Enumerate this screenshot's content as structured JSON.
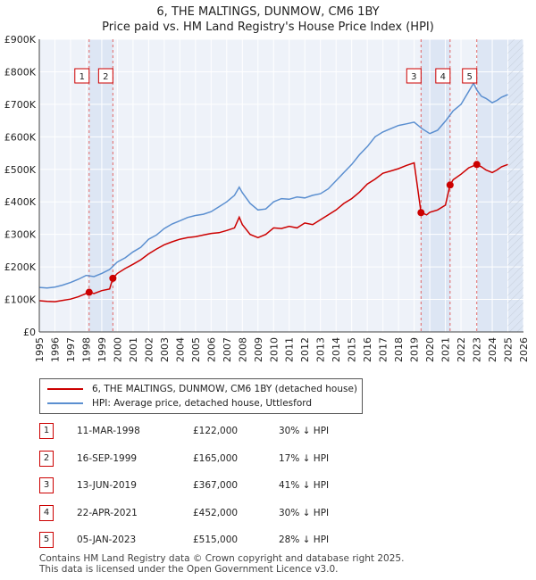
{
  "header": {
    "title": "6, THE MALTINGS, DUNMOW, CM6 1BY",
    "subtitle": "Price paid vs. HM Land Registry's House Price Index (HPI)"
  },
  "chart_data": {
    "type": "line",
    "title": "6, THE MALTINGS, DUNMOW, CM6 1BY",
    "subtitle": "Price paid vs. HM Land Registry's House Price Index (HPI)",
    "xlabel": "",
    "ylabel": "",
    "xlim": [
      1995,
      2026
    ],
    "ylim": [
      0,
      900000
    ],
    "x_ticks": [
      1995,
      1996,
      1997,
      1998,
      1999,
      2000,
      2001,
      2002,
      2003,
      2004,
      2005,
      2006,
      2007,
      2008,
      2009,
      2010,
      2011,
      2012,
      2013,
      2014,
      2015,
      2016,
      2017,
      2018,
      2019,
      2020,
      2021,
      2022,
      2023,
      2024,
      2025,
      2026
    ],
    "y_ticks": [
      0,
      100000,
      200000,
      300000,
      400000,
      500000,
      600000,
      700000,
      800000,
      900000
    ],
    "y_tick_labels": [
      "£0",
      "£100K",
      "£200K",
      "£300K",
      "£400K",
      "£500K",
      "£600K",
      "£700K",
      "£800K",
      "£900K"
    ],
    "grid": true,
    "legend_position": "bottom",
    "series": [
      {
        "name": "6, THE MALTINGS, DUNMOW, CM6 1BY (detached house)",
        "color": "#cc0000",
        "x": [
          1995.0,
          1995.5,
          1996.0,
          1996.5,
          1997.0,
          1997.5,
          1998.19,
          1998.5,
          1999.0,
          1999.5,
          1999.71,
          2000.0,
          2000.5,
          2001.0,
          2001.5,
          2002.0,
          2002.5,
          2003.0,
          2003.5,
          2004.0,
          2004.5,
          2005.0,
          2005.5,
          2006.0,
          2006.5,
          2007.0,
          2007.5,
          2007.8,
          2008.0,
          2008.5,
          2009.0,
          2009.5,
          2010.0,
          2010.5,
          2011.0,
          2011.5,
          2012.0,
          2012.5,
          2013.0,
          2013.5,
          2014.0,
          2014.5,
          2015.0,
          2015.5,
          2016.0,
          2016.5,
          2017.0,
          2017.5,
          2018.0,
          2018.5,
          2019.0,
          2019.44,
          2019.8,
          2020.0,
          2020.5,
          2021.0,
          2021.3,
          2021.5,
          2022.0,
          2022.5,
          2023.01,
          2023.3,
          2023.6,
          2024.0,
          2024.3,
          2024.6,
          2025.0
        ],
        "y": [
          96000,
          94000,
          93000,
          97000,
          101000,
          108000,
          122000,
          118000,
          127000,
          132000,
          165000,
          180000,
          195000,
          208000,
          222000,
          240000,
          255000,
          268000,
          277000,
          285000,
          290000,
          293000,
          298000,
          303000,
          305000,
          312000,
          320000,
          353000,
          330000,
          300000,
          290000,
          300000,
          320000,
          318000,
          325000,
          320000,
          335000,
          330000,
          345000,
          360000,
          375000,
          395000,
          410000,
          430000,
          455000,
          470000,
          488000,
          495000,
          502000,
          512000,
          520000,
          367000,
          360000,
          368000,
          375000,
          390000,
          452000,
          468000,
          485000,
          505000,
          515000,
          508000,
          498000,
          490000,
          498000,
          508000,
          515000
        ]
      },
      {
        "name": "HPI: Average price, detached house, Uttlesford",
        "color": "#5b8fd0",
        "x": [
          1995.0,
          1995.5,
          1996.0,
          1996.5,
          1997.0,
          1997.5,
          1998.0,
          1998.5,
          1999.0,
          1999.5,
          2000.0,
          2000.5,
          2001.0,
          2001.5,
          2002.0,
          2002.5,
          2003.0,
          2003.5,
          2004.0,
          2004.5,
          2005.0,
          2005.5,
          2006.0,
          2006.5,
          2007.0,
          2007.5,
          2007.8,
          2008.0,
          2008.5,
          2009.0,
          2009.5,
          2010.0,
          2010.5,
          2011.0,
          2011.5,
          2012.0,
          2012.5,
          2013.0,
          2013.5,
          2014.0,
          2014.5,
          2015.0,
          2015.5,
          2016.0,
          2016.5,
          2017.0,
          2017.5,
          2018.0,
          2018.5,
          2019.0,
          2019.5,
          2020.0,
          2020.5,
          2021.0,
          2021.5,
          2022.0,
          2022.5,
          2022.8,
          2023.0,
          2023.3,
          2023.6,
          2024.0,
          2024.3,
          2024.6,
          2025.0
        ],
        "y": [
          137000,
          135000,
          138000,
          144000,
          152000,
          162000,
          174000,
          170000,
          180000,
          192000,
          215000,
          228000,
          246000,
          260000,
          285000,
          298000,
          318000,
          332000,
          342000,
          352000,
          358000,
          362000,
          370000,
          385000,
          400000,
          420000,
          445000,
          428000,
          395000,
          375000,
          378000,
          400000,
          410000,
          408000,
          415000,
          412000,
          420000,
          425000,
          440000,
          465000,
          490000,
          515000,
          545000,
          570000,
          600000,
          615000,
          625000,
          635000,
          640000,
          645000,
          625000,
          610000,
          620000,
          648000,
          680000,
          700000,
          740000,
          765000,
          745000,
          725000,
          718000,
          705000,
          712000,
          722000,
          730000
        ]
      }
    ],
    "sales": [
      {
        "label": "1",
        "x": 1998.19,
        "y": 122000
      },
      {
        "label": "2",
        "x": 1999.71,
        "y": 165000
      },
      {
        "label": "3",
        "x": 2019.44,
        "y": 367000
      },
      {
        "label": "4",
        "x": 2021.3,
        "y": 452000
      },
      {
        "label": "5",
        "x": 2023.01,
        "y": 515000
      }
    ],
    "shaded_spans": [
      [
        1998.19,
        1999.71
      ],
      [
        2019.44,
        2021.3
      ],
      [
        2023.01,
        2026
      ]
    ]
  },
  "legend": {
    "items": [
      {
        "label": "6, THE MALTINGS, DUNMOW, CM6 1BY (detached house)",
        "color": "#cc0000"
      },
      {
        "label": "HPI: Average price, detached house, Uttlesford",
        "color": "#5b8fd0"
      }
    ]
  },
  "sales_table": [
    {
      "num": "1",
      "date": "11-MAR-1998",
      "price": "£122,000",
      "hpi": "30% ↓ HPI"
    },
    {
      "num": "2",
      "date": "16-SEP-1999",
      "price": "£165,000",
      "hpi": "17% ↓ HPI"
    },
    {
      "num": "3",
      "date": "13-JUN-2019",
      "price": "£367,000",
      "hpi": "41% ↓ HPI"
    },
    {
      "num": "4",
      "date": "22-APR-2021",
      "price": "£452,000",
      "hpi": "30% ↓ HPI"
    },
    {
      "num": "5",
      "date": "05-JAN-2023",
      "price": "£515,000",
      "hpi": "28% ↓ HPI"
    }
  ],
  "footer": {
    "line1": "Contains HM Land Registry data © Crown copyright and database right 2025.",
    "line2": "This data is licensed under the Open Government Licence v3.0."
  }
}
